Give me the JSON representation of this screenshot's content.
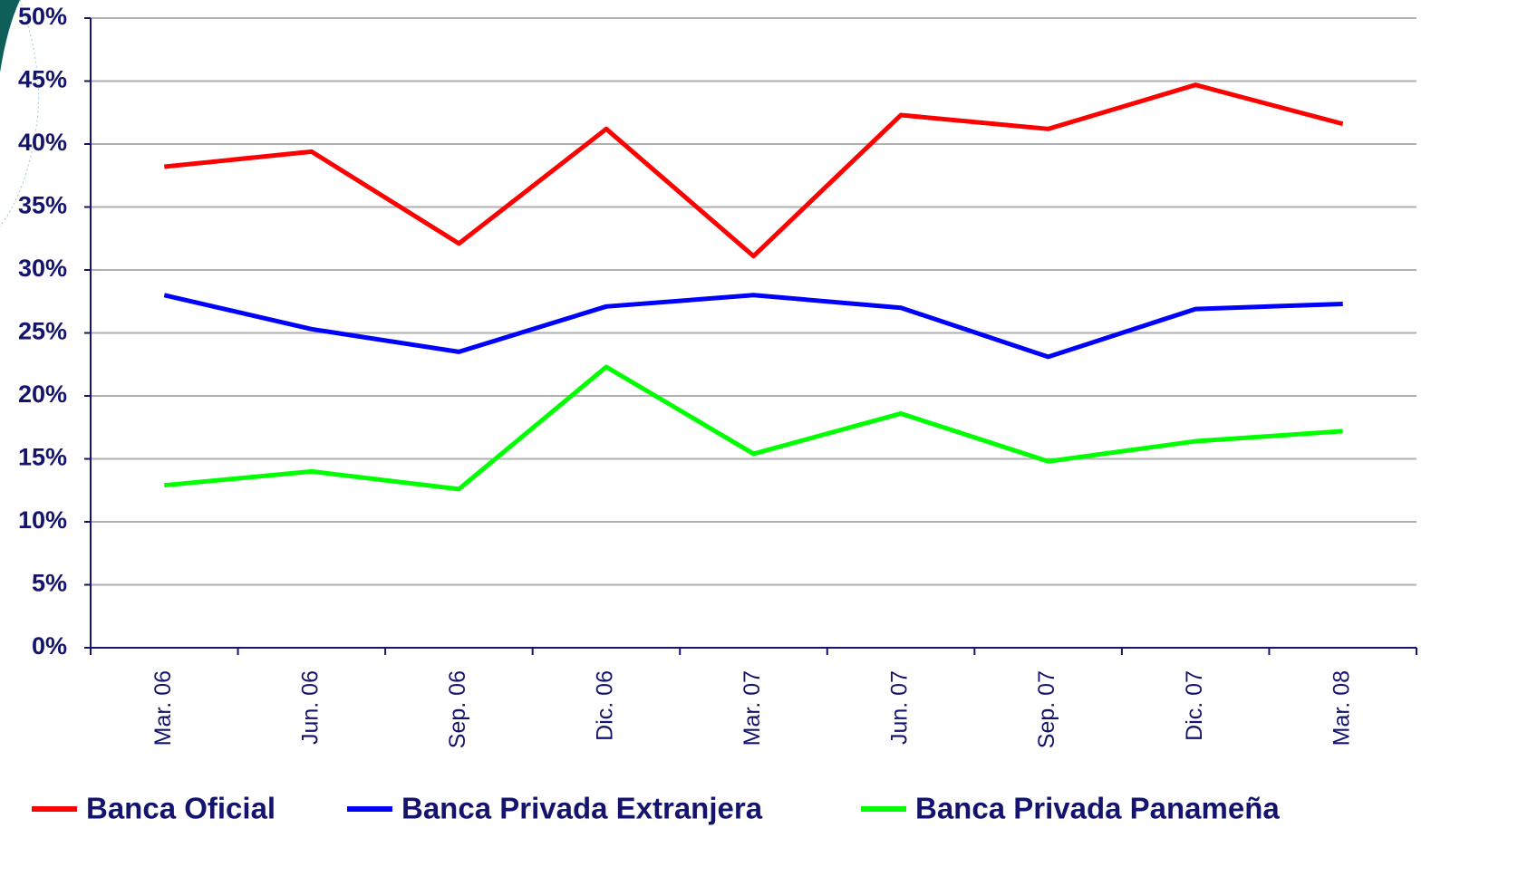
{
  "chart_data": {
    "type": "line",
    "categories": [
      "Mar. 06",
      "Jun. 06",
      "Sep. 06",
      "Dic. 06",
      "Mar. 07",
      "Jun. 07",
      "Sep. 07",
      "Dic. 07",
      "Mar. 08"
    ],
    "series": [
      {
        "name": "Banca Oficial",
        "color": "#ff0000",
        "values": [
          38.2,
          39.4,
          32.1,
          41.2,
          31.1,
          42.3,
          41.2,
          44.7,
          41.6
        ]
      },
      {
        "name": "Banca Privada Extranjera",
        "color": "#0000ff",
        "values": [
          28.0,
          25.3,
          23.5,
          27.1,
          28.0,
          27.0,
          23.1,
          26.9,
          27.3
        ]
      },
      {
        "name": "Banca Privada Panameña",
        "color": "#00ff00",
        "values": [
          12.9,
          14.0,
          12.6,
          22.3,
          15.4,
          18.6,
          14.8,
          16.4,
          17.2
        ]
      }
    ],
    "ylim": [
      0,
      50
    ],
    "yticks": [
      {
        "value": 0,
        "label": "0%"
      },
      {
        "value": 5,
        "label": "5%"
      },
      {
        "value": 10,
        "label": "10%"
      },
      {
        "value": 15,
        "label": "15%"
      },
      {
        "value": 20,
        "label": "20%"
      },
      {
        "value": 25,
        "label": "25%"
      },
      {
        "value": 30,
        "label": "30%"
      },
      {
        "value": 35,
        "label": "35%"
      },
      {
        "value": 40,
        "label": "40%"
      },
      {
        "value": 45,
        "label": "45%"
      },
      {
        "value": 50,
        "label": "50%"
      }
    ],
    "grid": true,
    "legend": "bottom"
  }
}
